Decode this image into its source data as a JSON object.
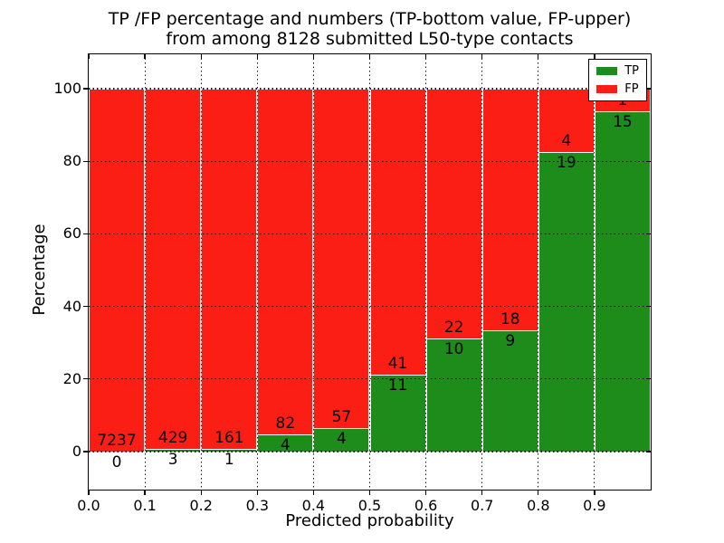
{
  "figure": {
    "title_line1": "TP /FP percentage and numbers (TP-bottom value, FP-upper)",
    "title_line2": "from among 8128 submitted L50-type contacts",
    "xlabel": "Predicted probability",
    "ylabel": "Percentage"
  },
  "chart_data": {
    "type": "bar",
    "stacked": true,
    "normalized": "each bin stacked to 100%, labels show raw counts (TP below boundary, FP above)",
    "total_contacts": 8128,
    "bins": [
      "0.0-0.1",
      "0.1-0.2",
      "0.2-0.3",
      "0.3-0.4",
      "0.4-0.5",
      "0.5-0.6",
      "0.6-0.7",
      "0.7-0.8",
      "0.8-0.9",
      "0.9-1.0"
    ],
    "series": [
      {
        "name": "TP",
        "color": "#1e8c1b",
        "counts": [
          0,
          3,
          1,
          4,
          4,
          11,
          10,
          9,
          19,
          15
        ]
      },
      {
        "name": "FP",
        "color": "#fb1e15",
        "counts": [
          7237,
          429,
          161,
          82,
          57,
          41,
          22,
          18,
          4,
          1
        ]
      }
    ],
    "tp_percent_by_bin": [
      0.0,
      0.69,
      0.62,
      4.65,
      6.56,
      21.15,
      31.25,
      33.33,
      82.61,
      93.75
    ],
    "xlabel": "Predicted probability",
    "ylabel": "Percentage",
    "xticks": [
      "0.0",
      "0.1",
      "0.2",
      "0.3",
      "0.4",
      "0.5",
      "0.6",
      "0.7",
      "0.8",
      "0.9"
    ],
    "yticks": [
      "0",
      "20",
      "40",
      "60",
      "80",
      "100"
    ],
    "xlim": [
      0,
      1
    ],
    "ylim": [
      -10.5,
      109.5
    ],
    "grid": "dotted black, drawn above bars",
    "bar_edge_color": "#ffffff",
    "legend": {
      "position": "upper right",
      "entries": [
        {
          "label": "TP",
          "color": "#1e8c1b"
        },
        {
          "label": "FP",
          "color": "#fb1e15"
        }
      ]
    }
  }
}
